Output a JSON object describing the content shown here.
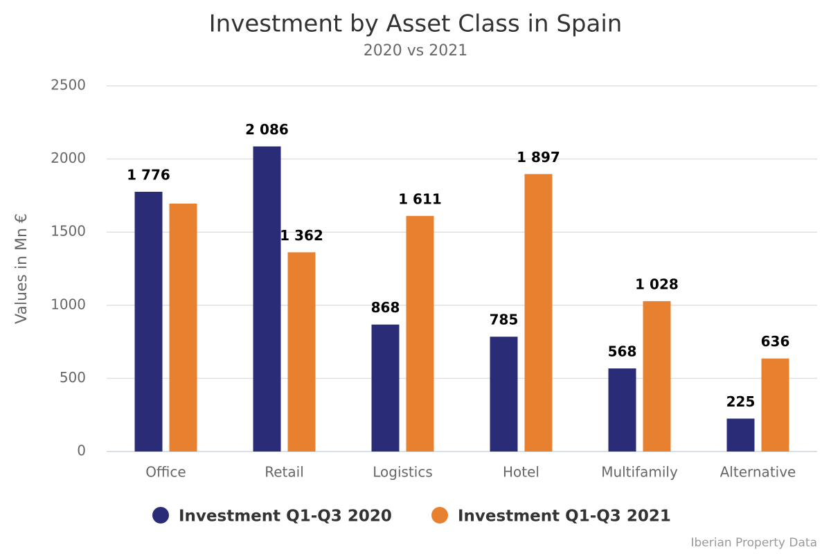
{
  "chart_data": {
    "type": "bar",
    "title": "Investment by Asset Class in Spain",
    "subtitle": "2020 vs 2021",
    "y_label": "Values in Mn €",
    "source": "Iberian Property Data",
    "categories": [
      "Office",
      "Retail",
      "Logistics",
      "Hotel",
      "Multifamily",
      "Alternative"
    ],
    "series": [
      {
        "name": "Investment Q1-Q3 2020",
        "color": "#2b2c77",
        "values": [
          1776,
          2086,
          868,
          785,
          568,
          225
        ],
        "value_labels": [
          "1 776",
          "2 086",
          "868",
          "785",
          "568",
          "225"
        ]
      },
      {
        "name": "Investment Q1-Q3 2021",
        "color": "#e8812f",
        "values": [
          1695,
          1362,
          1611,
          1897,
          1028,
          636
        ],
        "value_labels": [
          null,
          "1 362",
          "1 611",
          "1 897",
          "1 028",
          "636"
        ]
      }
    ],
    "ylim": [
      0,
      2500
    ],
    "yticks": [
      0,
      500,
      1000,
      1500,
      2000,
      2500
    ],
    "grid": true,
    "legend": "bottom"
  }
}
